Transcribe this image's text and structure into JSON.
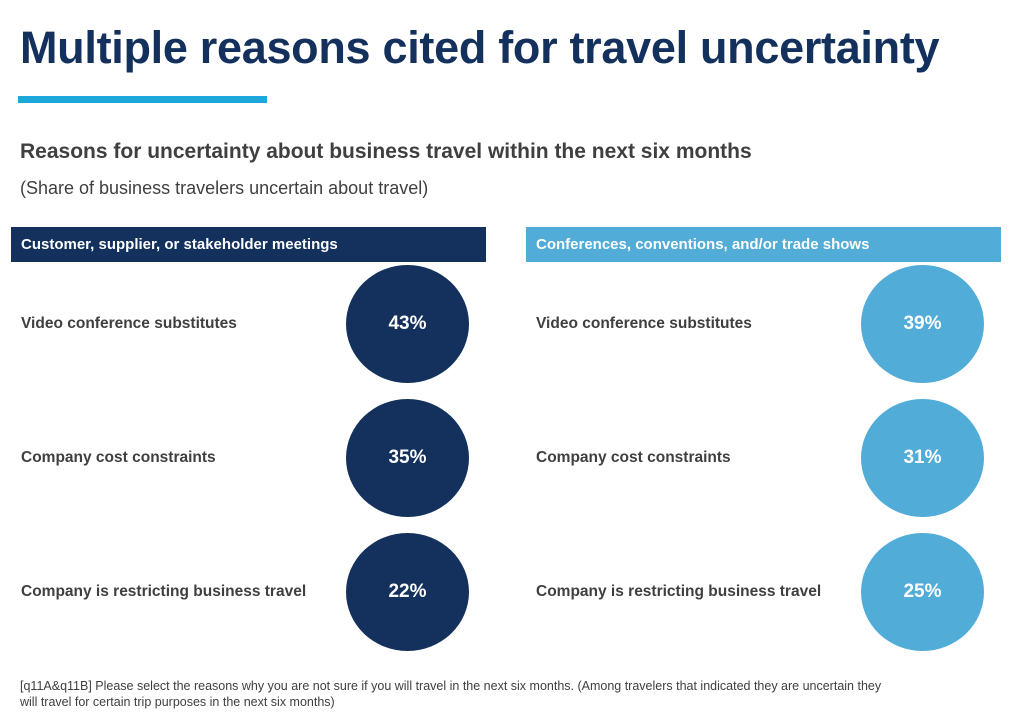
{
  "header": {
    "title": "Multiple reasons cited for travel uncertainty",
    "subtitle": "Reasons for uncertainty about business travel within the next six months",
    "note": "(Share of business travelers uncertain about travel)"
  },
  "colors": {
    "dark_navy": "#13315c",
    "light_blue": "#52acd8",
    "accent": "#1ea7db",
    "text": "#3f3f3f"
  },
  "chart_data": {
    "type": "table",
    "unit": "%",
    "categories": [
      "Video conference substitutes",
      "Company cost constraints",
      "Company is restricting business travel"
    ],
    "series": [
      {
        "name": "Customer, supplier, or stakeholder meetings",
        "values": [
          43,
          35,
          22
        ],
        "labels": [
          "43%",
          "35%",
          "22%"
        ]
      },
      {
        "name": "Conferences, conventions, and/or trade shows",
        "values": [
          39,
          31,
          25
        ],
        "labels": [
          "39%",
          "31%",
          "25%"
        ]
      }
    ]
  },
  "footnote": "[q11A&q11B] Please select the reasons why you are not sure if you will travel in the next six months. (Among travelers that indicated they are uncertain they will travel for certain trip purposes in the next six months)"
}
